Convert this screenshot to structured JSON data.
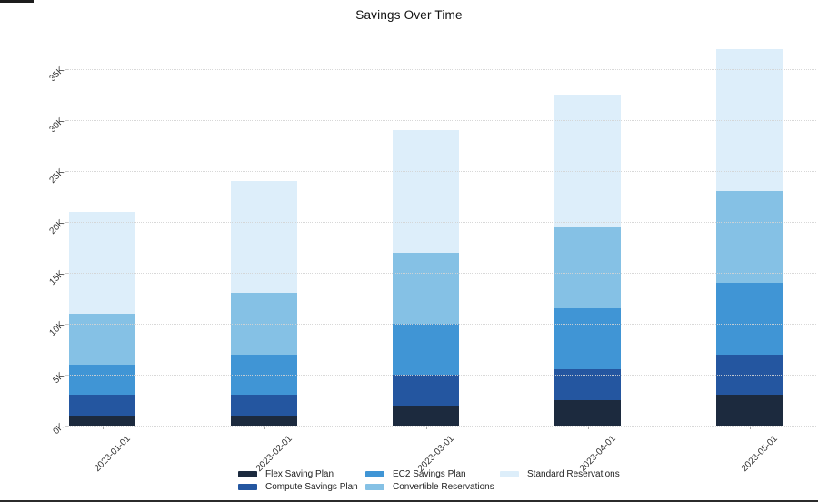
{
  "chart_data": {
    "type": "bar",
    "stacked": true,
    "title": "Savings Over Time",
    "xlabel": "",
    "ylabel": "",
    "categories": [
      "2023-01-01",
      "2023-02-01",
      "2023-03-01",
      "2023-04-01",
      "2023-05-01"
    ],
    "series": [
      {
        "name": "Flex Saving Plan",
        "color": "#1c2a3e",
        "values": [
          1000,
          1000,
          2000,
          2500,
          3000
        ]
      },
      {
        "name": "Compute Savings Plan",
        "color": "#2456a0",
        "values": [
          2000,
          2000,
          3000,
          3000,
          4000
        ]
      },
      {
        "name": "EC2 Savings Plan",
        "color": "#4095d5",
        "values": [
          3000,
          4000,
          5000,
          6000,
          7000
        ]
      },
      {
        "name": "Convertible Reservations",
        "color": "#85c1e5",
        "values": [
          5000,
          6000,
          7000,
          8000,
          9000
        ]
      },
      {
        "name": "Standard Reservations",
        "color": "#ddeefa",
        "values": [
          10000,
          11000,
          12000,
          13000,
          14000
        ]
      }
    ],
    "totals": [
      21000,
      24000,
      29000,
      32500,
      37000
    ],
    "y_ticks": [
      {
        "label": "0K",
        "value": 0
      },
      {
        "label": "5K",
        "value": 5000
      },
      {
        "label": "10K",
        "value": 10000
      },
      {
        "label": "15K",
        "value": 15000
      },
      {
        "label": "20K",
        "value": 20000
      },
      {
        "label": "25K",
        "value": 25000
      },
      {
        "label": "30K",
        "value": 30000
      },
      {
        "label": "35K",
        "value": 35000
      }
    ],
    "ylim": [
      0,
      38200
    ],
    "grid": "horizontal-dotted",
    "legend_position": "bottom"
  }
}
